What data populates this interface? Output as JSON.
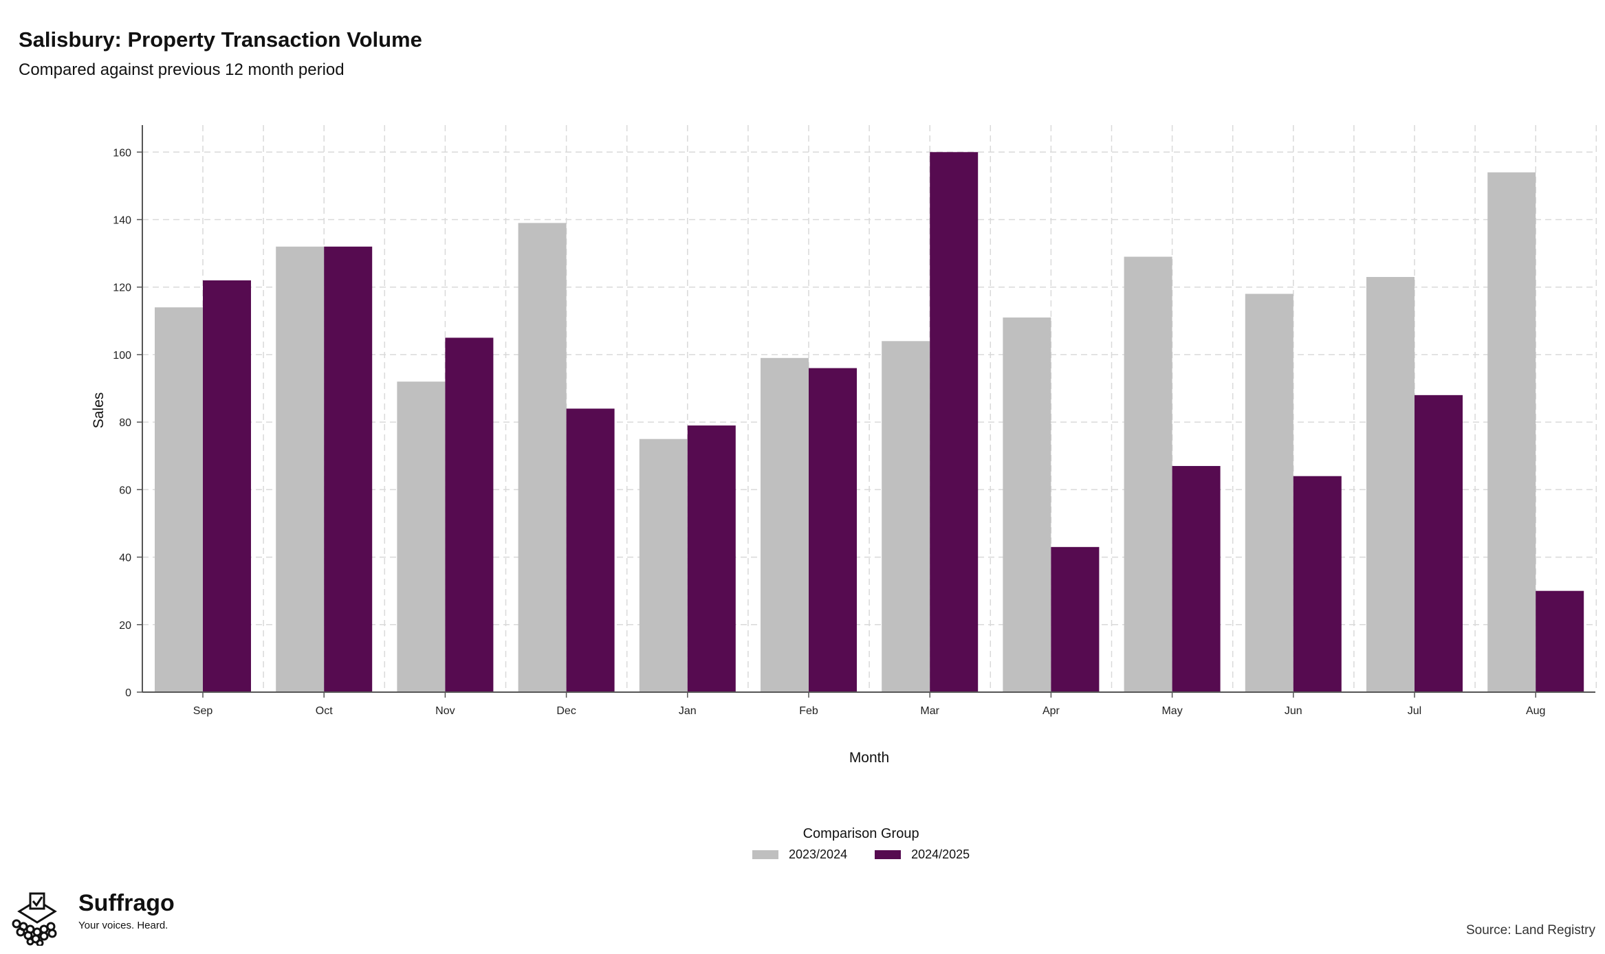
{
  "header": {
    "title": "Salisbury: Property Transaction Volume",
    "subtitle": "Compared against previous 12 month period"
  },
  "chart_data": {
    "type": "bar",
    "title": "Salisbury: Property Transaction Volume",
    "subtitle": "Compared against previous 12 month period",
    "xlabel": "Month",
    "ylabel": "Sales",
    "ylim": [
      0,
      168
    ],
    "yticks": [
      0,
      20,
      40,
      60,
      80,
      100,
      120,
      140,
      160
    ],
    "grid": true,
    "legend_placement": "bottom-center",
    "legend_title": "Comparison Group",
    "categories": [
      "Sep",
      "Oct",
      "Nov",
      "Dec",
      "Jan",
      "Feb",
      "Mar",
      "Apr",
      "May",
      "Jun",
      "Jul",
      "Aug"
    ],
    "series": [
      {
        "name": "2023/2024",
        "color": "#bfbfbf",
        "values": [
          114,
          132,
          92,
          139,
          75,
          99,
          104,
          111,
          129,
          118,
          123,
          154
        ]
      },
      {
        "name": "2024/2025",
        "color": "#560b50",
        "values": [
          122,
          132,
          105,
          84,
          79,
          96,
          160,
          43,
          67,
          64,
          88,
          30
        ]
      }
    ]
  },
  "legend": {
    "title": "Comparison Group",
    "items": [
      {
        "label": "2023/2024",
        "color": "#bfbfbf"
      },
      {
        "label": "2024/2025",
        "color": "#560b50"
      }
    ]
  },
  "branding": {
    "name": "Suffrago",
    "tagline": "Your voices. Heard.",
    "icon": "ballot-box-icon"
  },
  "footer": {
    "source": "Source: Land Registry"
  }
}
